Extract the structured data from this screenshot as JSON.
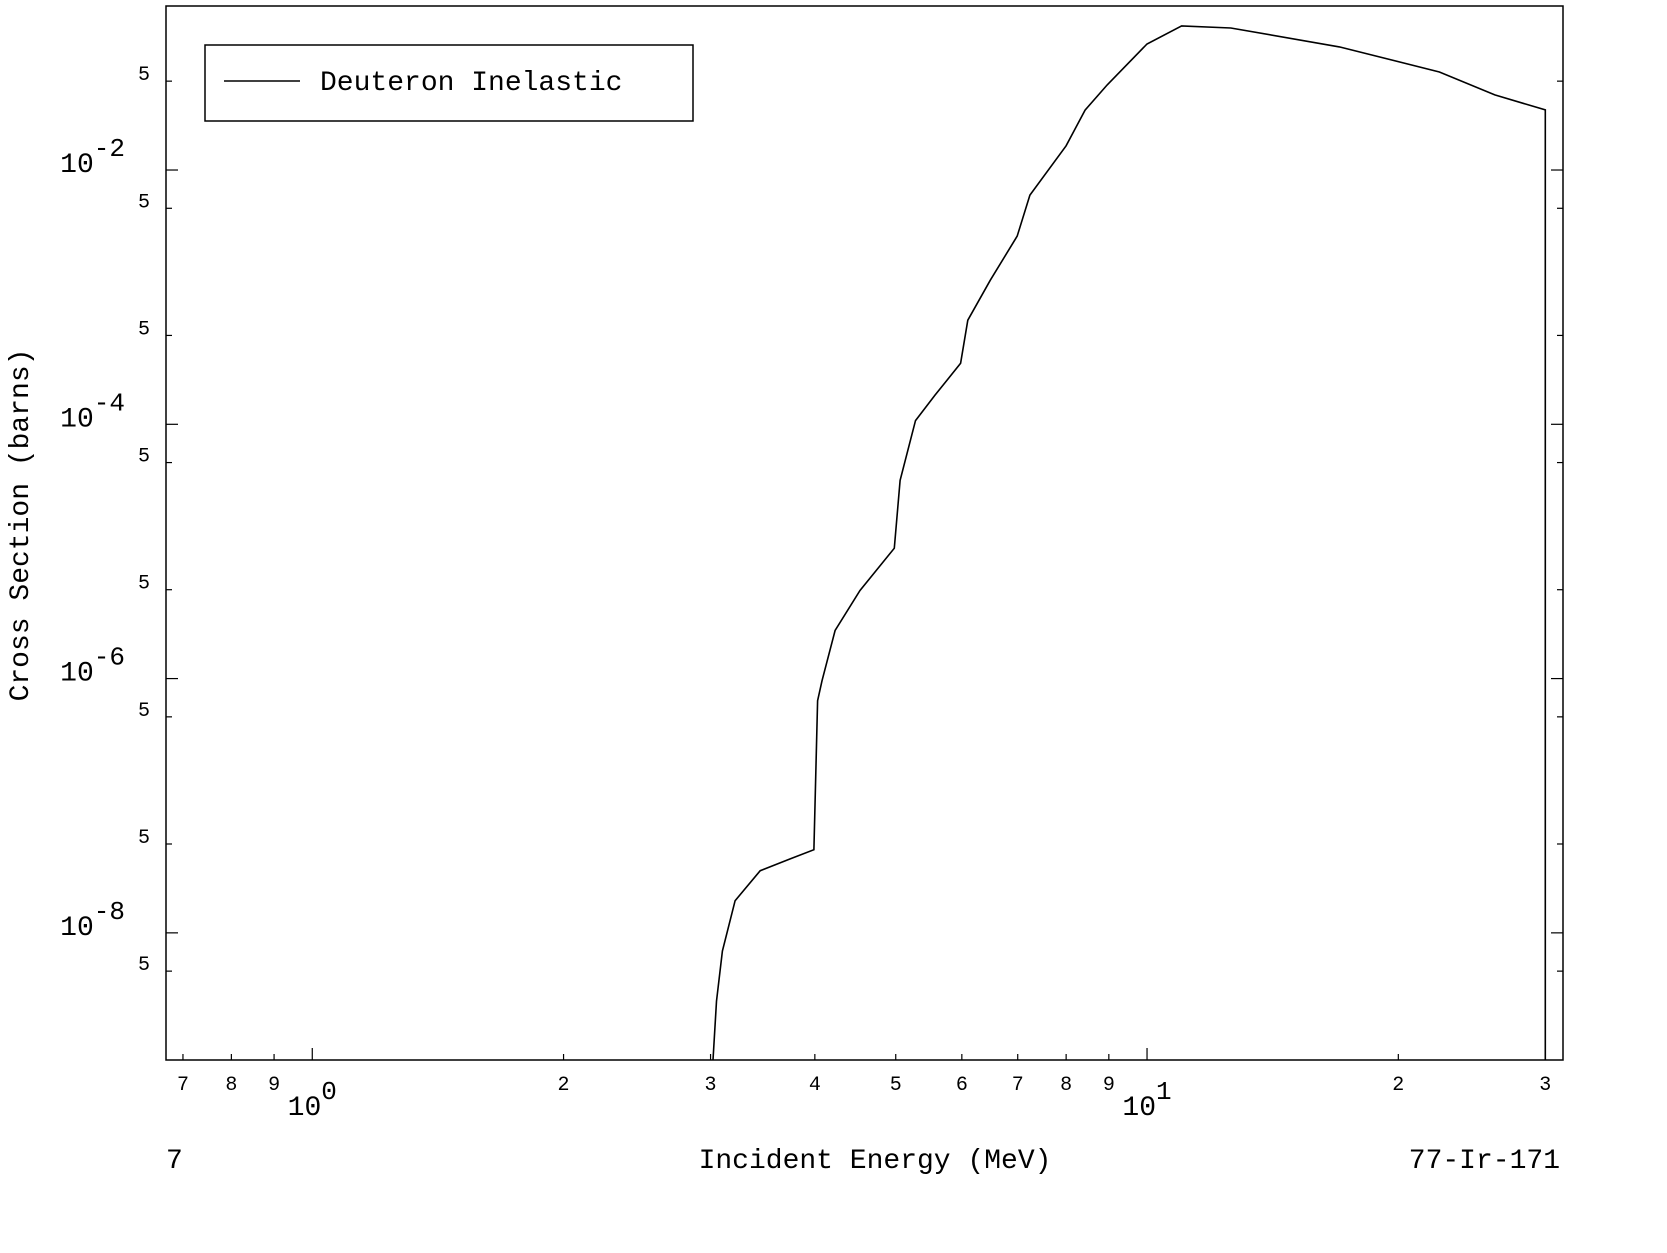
{
  "chart_data": {
    "type": "line",
    "xlabel": "Incident Energy (MeV)",
    "ylabel": "Cross Section (barns)",
    "corner_left": "7",
    "corner_right": "77-Ir-171",
    "log_x": true,
    "log_y": true,
    "xlim": [
      0.668,
      31.5
    ],
    "ylim": [
      1e-09,
      0.195
    ],
    "xticks": [
      {
        "value": 0.7,
        "label": "7"
      },
      {
        "value": 0.8,
        "label": "8"
      },
      {
        "value": 0.9,
        "label": "9"
      },
      {
        "value": 1,
        "base": "10",
        "exponent": "0"
      },
      2,
      3,
      4,
      5,
      6,
      7,
      8,
      9,
      {
        "value": 10,
        "base": "10",
        "exponent": "1"
      },
      {
        "value": 20,
        "label": "2"
      },
      {
        "value": 30,
        "label": "3"
      }
    ],
    "yticks": [
      {
        "value": 0.05,
        "label": "5"
      },
      {
        "value": 0.01,
        "base": "10",
        "exponent": "-2"
      },
      {
        "value": 0.005,
        "label": "5"
      },
      {
        "value": 0.0005,
        "label": "5"
      },
      {
        "value": 0.0001,
        "base": "10",
        "exponent": "-4"
      },
      {
        "value": 5e-05,
        "label": "5"
      },
      {
        "value": 5e-06,
        "label": "5"
      },
      {
        "value": 1e-06,
        "base": "10",
        "exponent": "-6"
      },
      {
        "value": 5e-07,
        "label": "5"
      },
      {
        "value": 5e-08,
        "label": "5"
      },
      {
        "value": 1e-08,
        "base": "10",
        "exponent": "-8"
      },
      {
        "value": 5e-09,
        "label": "5"
      }
    ],
    "legend_position": "upper left",
    "series": [
      {
        "name": "Deuteron Inelastic",
        "color": "#000000",
        "x": [
          3.02,
          3.05,
          3.1,
          3.21,
          3.44,
          3.74,
          3.99,
          4.03,
          4.08,
          4.23,
          4.53,
          4.98,
          5.06,
          5.28,
          5.57,
          5.98,
          6.1,
          6.49,
          6.99,
          7.24,
          8.0,
          8.43,
          8.96,
          10,
          11.0,
          12.6,
          17.0,
          22.4,
          26.1,
          30,
          30
        ],
        "values": [
          1e-09,
          2.9e-09,
          7.2e-09,
          1.79e-08,
          3.08e-08,
          3.83e-08,
          4.51e-08,
          6.7e-07,
          9.6e-07,
          2.39e-06,
          4.93e-06,
          1.06e-05,
          3.62e-05,
          0.000107,
          0.000169,
          0.000302,
          0.000659,
          0.00136,
          0.00302,
          0.00635,
          0.0155,
          0.0296,
          0.0467,
          0.098,
          0.136,
          0.131,
          0.093,
          0.059,
          0.039,
          0.0297,
          1e-09
        ]
      }
    ]
  }
}
